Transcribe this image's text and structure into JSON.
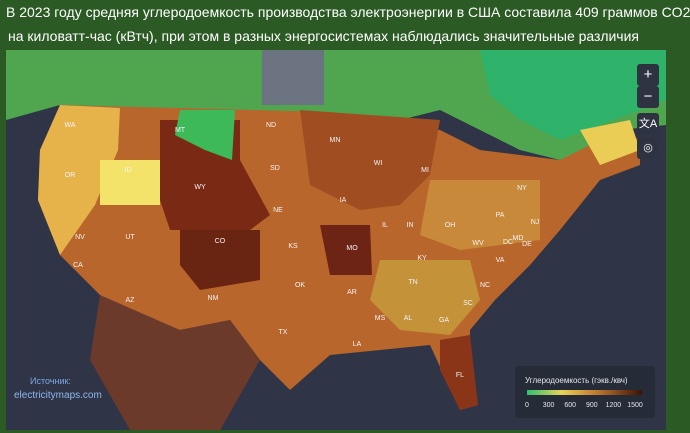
{
  "header": {
    "title_line1": "В 2023 году средняя углеродоемкость производства электроэнергии в США составила 409 граммов CO2",
    "title_line2": "на киловатт-час (кВтч), при этом в разных энергосистемах наблюдались значительные различия"
  },
  "map": {
    "labels": [
      "WA",
      "OR",
      "ID",
      "MT",
      "WY",
      "ND",
      "SD",
      "NE",
      "MN",
      "WI",
      "MI",
      "IA",
      "IL",
      "IN",
      "OH",
      "PA",
      "NY",
      "NJ",
      "DE",
      "MD",
      "DC",
      "VA",
      "WV",
      "KY",
      "TN",
      "NC",
      "SC",
      "GA",
      "AL",
      "MS",
      "LA",
      "AR",
      "MO",
      "KS",
      "OK",
      "TX",
      "NM",
      "AZ",
      "UT",
      "CO",
      "NV",
      "CA",
      "FL"
    ]
  },
  "source": {
    "label": "Источник:",
    "site": "electricitymaps.com"
  },
  "legend": {
    "title": "Углеродоемкость (гэкв./квч)",
    "ticks": [
      0,
      300,
      600,
      900,
      1200,
      1500
    ]
  }
}
